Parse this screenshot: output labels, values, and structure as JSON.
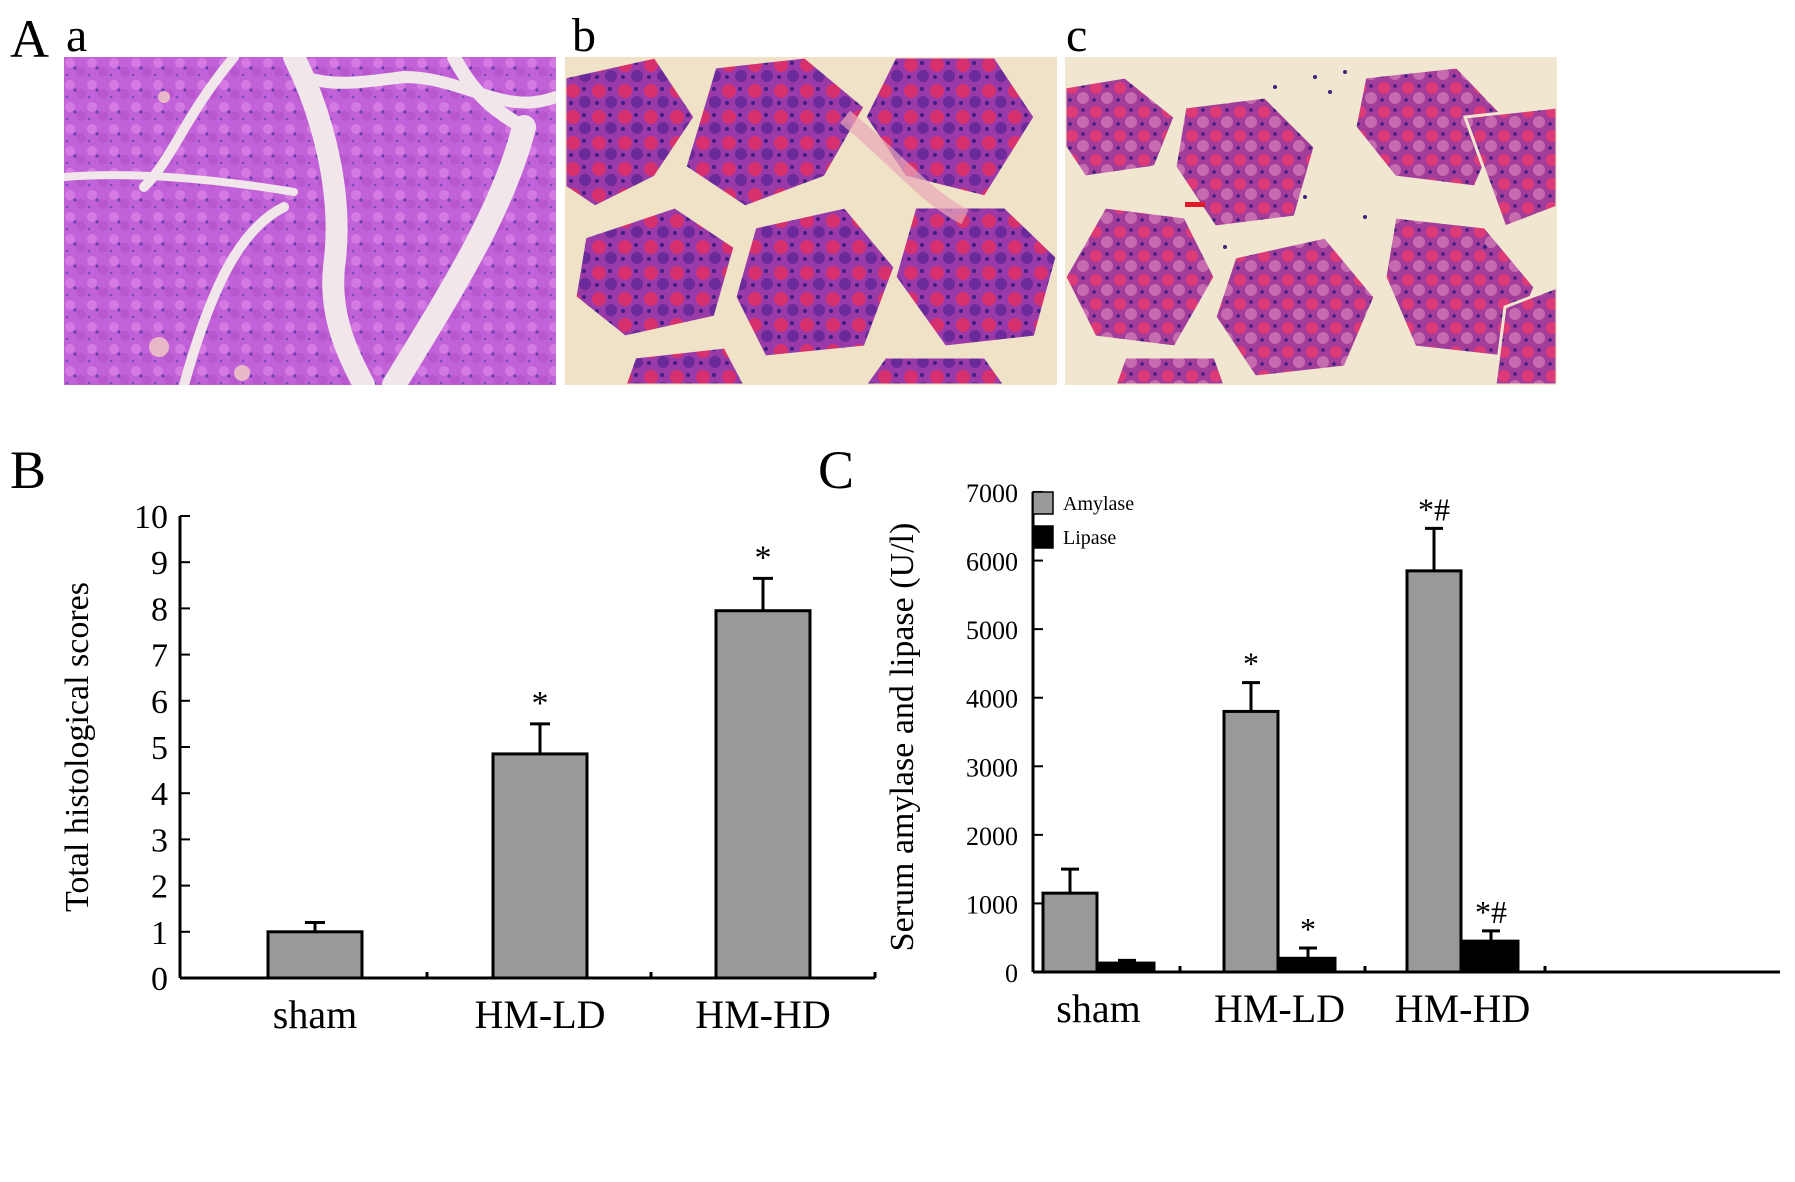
{
  "panel_a": {
    "letter": "A",
    "images": [
      {
        "label": "a",
        "stain_colors": {
          "tissue": "#c262d8",
          "septa": "#f1e6ea",
          "nuclei": "#6a3fb0"
        }
      },
      {
        "label": "b",
        "stain_colors": {
          "tissue": "#b53aa6",
          "septa": "#f1e1c8",
          "nuclei": "#4a2a8c"
        }
      },
      {
        "label": "c",
        "stain_colors": {
          "tissue": "#b8409a",
          "septa": "#f1e6cf",
          "nuclei": "#4a2a8c"
        }
      }
    ]
  },
  "chart_data": [
    {
      "panel": "B",
      "type": "bar",
      "ylabel": "Total histological scores",
      "ylim": [
        0,
        10
      ],
      "yticks": [
        "0",
        "1",
        "2",
        "3",
        "4",
        "5",
        "6",
        "7",
        "8",
        "9",
        "10"
      ],
      "categories": [
        "sham",
        "HM-LD",
        "HM-HD"
      ],
      "values": [
        1.0,
        4.85,
        7.95
      ],
      "errors": [
        0.2,
        0.65,
        0.7
      ],
      "annotations": [
        "",
        "*",
        "*"
      ],
      "bar_color": "#999999"
    },
    {
      "panel": "C",
      "type": "bar",
      "ylabel": "Serum amylase and lipase (U/l)",
      "ylim": [
        0,
        7000
      ],
      "yticks": [
        "0",
        "1000",
        "2000",
        "3000",
        "4000",
        "5000",
        "6000",
        "7000"
      ],
      "categories": [
        "sham",
        "HM-LD",
        "HM-HD"
      ],
      "series": [
        {
          "name": "Amylase",
          "color": "#999999",
          "values": [
            1150,
            3800,
            5850
          ],
          "errors": [
            350,
            420,
            620
          ],
          "annotations": [
            "",
            "*",
            "*#"
          ]
        },
        {
          "name": "Lipase",
          "color": "#000000",
          "values": [
            130,
            200,
            450
          ],
          "errors": [
            40,
            150,
            150
          ],
          "annotations": [
            "",
            "*",
            "*#"
          ]
        }
      ],
      "legend_position": "top-left"
    }
  ]
}
